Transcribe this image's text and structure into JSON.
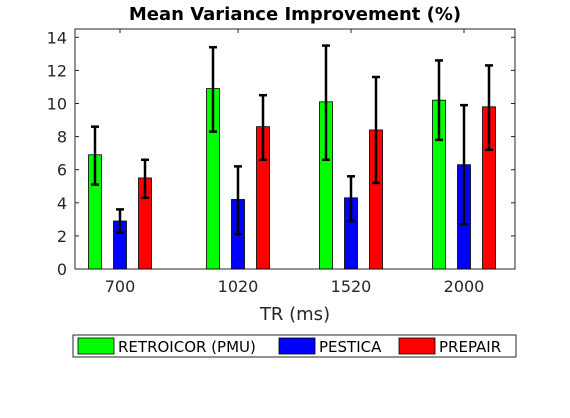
{
  "chart_data": {
    "type": "bar",
    "title": "Mean Variance Improvement (%)",
    "xlabel": "TR (ms)",
    "ylabel": "",
    "categories": [
      "700",
      "1020",
      "1520",
      "2000"
    ],
    "ylim": [
      0,
      14.5
    ],
    "yticks": [
      0,
      2,
      4,
      6,
      8,
      10,
      12,
      14
    ],
    "grid": false,
    "legend_position": "bottom",
    "series": [
      {
        "name": "RETROICOR (PMU)",
        "color": "#00ff00",
        "values": [
          6.9,
          10.9,
          10.1,
          10.2
        ],
        "err_low": [
          5.1,
          8.3,
          6.6,
          7.8
        ],
        "err_high": [
          8.6,
          13.4,
          13.5,
          12.6
        ]
      },
      {
        "name": "PESTICA",
        "color": "#0000ff",
        "values": [
          2.9,
          4.2,
          4.3,
          6.3
        ],
        "err_low": [
          2.2,
          2.1,
          2.9,
          2.7
        ],
        "err_high": [
          3.6,
          6.2,
          5.6,
          9.9
        ]
      },
      {
        "name": "PREPAIR",
        "color": "#ff0000",
        "values": [
          5.5,
          8.6,
          8.4,
          9.8
        ],
        "err_low": [
          4.3,
          6.6,
          5.2,
          7.2
        ],
        "err_high": [
          6.6,
          10.5,
          11.6,
          12.3
        ]
      }
    ]
  }
}
